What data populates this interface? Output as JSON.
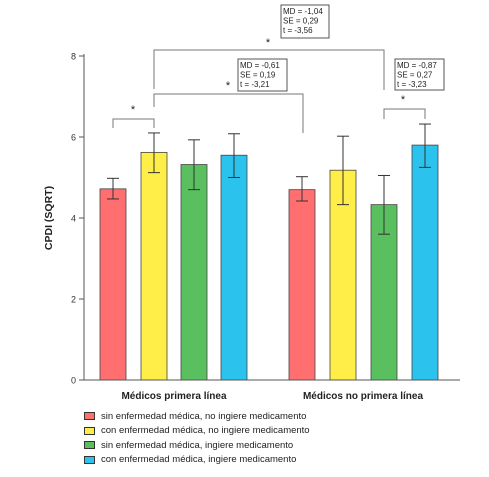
{
  "chart_data": {
    "type": "bar",
    "ylabel": "CPDI (SQRT)",
    "ylim": [
      0,
      8
    ],
    "yticks": [
      0,
      2,
      4,
      6,
      8
    ],
    "groups": [
      "Médicos primera línea",
      "Médicos no primera línea"
    ],
    "series": [
      {
        "name": "sin enfermedad médica, no ingiere medicamento",
        "color": "#FF6F6F",
        "values": [
          4.72,
          4.7
        ],
        "ci_low": [
          4.47,
          4.42
        ],
        "ci_high": [
          4.98,
          5.02
        ]
      },
      {
        "name": "con enfermedad médica, no ingiere medicamento",
        "color": "#FFEE47",
        "values": [
          5.62,
          5.18
        ],
        "ci_low": [
          5.12,
          4.33
        ],
        "ci_high": [
          6.1,
          6.02
        ]
      },
      {
        "name": "sin enfermedad médica, ingiere medicamento",
        "color": "#5ABF5E",
        "values": [
          5.32,
          4.33
        ],
        "ci_low": [
          4.7,
          3.6
        ],
        "ci_high": [
          5.93,
          5.05
        ]
      },
      {
        "name": "con enfermedad médica, ingiere medicamento",
        "color": "#2BC2EE",
        "values": [
          5.55,
          5.8
        ],
        "ci_low": [
          5.0,
          5.25
        ],
        "ci_high": [
          6.08,
          6.32
        ]
      }
    ],
    "annotations": [
      {
        "star": "*",
        "stats": []
      },
      {
        "star": "*",
        "stats": []
      },
      {
        "star": "*",
        "stats": [
          "MD = -0,61",
          "SE = 0,19",
          "t = -3,21"
        ]
      },
      {
        "star": "*",
        "stats": [
          "MD = -1,04",
          "SE = 0,29",
          "t = -3,56"
        ]
      },
      {
        "star": "*",
        "stats": [
          "MD = -0,87",
          "SE = 0,27",
          "t = -3,23"
        ]
      }
    ]
  }
}
